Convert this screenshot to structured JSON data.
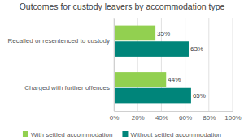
{
  "chart_data": {
    "type": "bar",
    "orientation": "horizontal",
    "title": "Outcomes for custody leavers by accommodation type",
    "categories": [
      "Recalled or resentenced to custody",
      "Charged with further offences"
    ],
    "series": [
      {
        "name": "With settled accommodation",
        "color": "#92d050",
        "values": [
          35,
          44
        ],
        "value_labels": [
          "35%",
          "44%"
        ]
      },
      {
        "name": "Without settled accommodation",
        "color": "#00857a",
        "values": [
          63,
          65
        ],
        "value_labels": [
          "63%",
          "65%"
        ]
      }
    ],
    "xlim": [
      0,
      100
    ],
    "xticks": [
      {
        "value": 0,
        "label": "0%"
      },
      {
        "value": 20,
        "label": "20%"
      },
      {
        "value": 40,
        "label": "40%"
      },
      {
        "value": 60,
        "label": "60%"
      },
      {
        "value": 80,
        "label": "80%"
      },
      {
        "value": 100,
        "label": "100%"
      }
    ],
    "grid": true,
    "legend": "bottom",
    "data_labels": true
  }
}
